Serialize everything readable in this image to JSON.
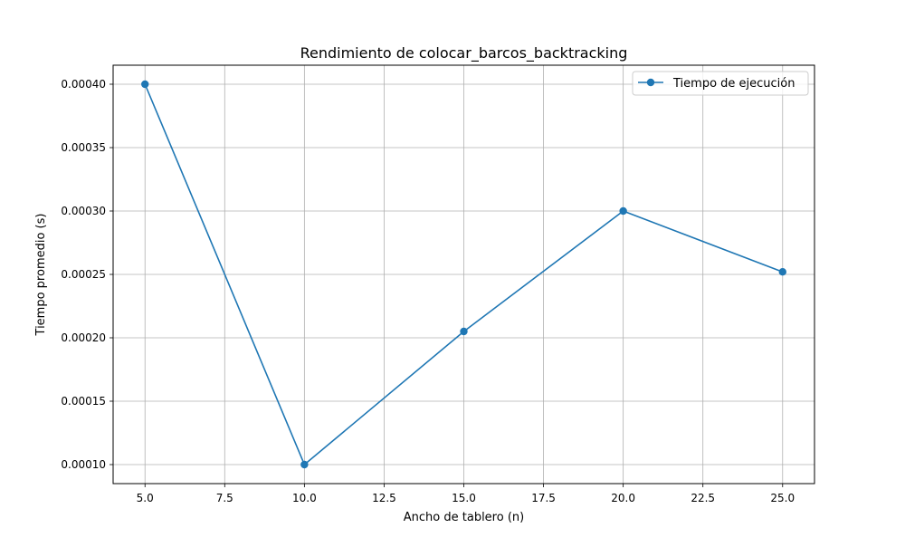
{
  "chart_data": {
    "type": "line",
    "title": "Rendimiento de colocar_barcos_backtracking",
    "xlabel": "Ancho de tablero (n)",
    "ylabel": "Tiempo promedio (s)",
    "xlim": [
      4.0,
      26.0
    ],
    "ylim": [
      8.5e-05,
      0.000415
    ],
    "grid": true,
    "legend_position": "top-right",
    "x_ticks": [
      5.0,
      7.5,
      10.0,
      12.5,
      15.0,
      17.5,
      20.0,
      22.5,
      25.0
    ],
    "x_tick_labels": [
      "5.0",
      "7.5",
      "10.0",
      "12.5",
      "15.0",
      "17.5",
      "20.0",
      "22.5",
      "25.0"
    ],
    "y_ticks": [
      0.0001,
      0.00015,
      0.0002,
      0.00025,
      0.0003,
      0.00035,
      0.0004
    ],
    "y_tick_labels": [
      "0.00010",
      "0.00015",
      "0.00020",
      "0.00025",
      "0.00030",
      "0.00035",
      "0.00040"
    ],
    "series": [
      {
        "name": "Tiempo de ejecución",
        "color": "#1f77b4",
        "marker": "circle",
        "x": [
          5,
          10,
          15,
          20,
          25
        ],
        "y": [
          0.0004,
          0.0001,
          0.000205,
          0.0003,
          0.000252
        ]
      }
    ]
  }
}
